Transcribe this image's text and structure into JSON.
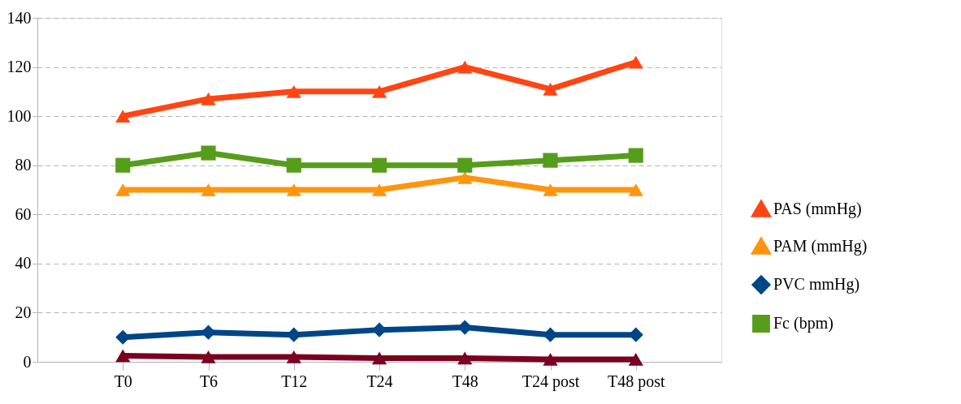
{
  "chart_data": {
    "type": "line",
    "categories": [
      "T0",
      "T6",
      "T12",
      "T24",
      "T48",
      "T24 post",
      "T48 post"
    ],
    "series": [
      {
        "name": "PAS (mmHg)",
        "color": "#ff4513",
        "marker": "triangle",
        "values": [
          100,
          107,
          110,
          110,
          120,
          111,
          122
        ]
      },
      {
        "name": "PAM (mmHg)",
        "color": "#ff950e",
        "marker": "triangle",
        "values": [
          70,
          70,
          70,
          70,
          75,
          70,
          70
        ]
      },
      {
        "name": "PVC mmHg)",
        "color": "#004586",
        "marker": "diamond",
        "values": [
          10,
          12,
          11,
          13,
          14,
          11,
          11
        ]
      },
      {
        "name": "Fc (bpm)",
        "color": "#579d1c",
        "marker": "square",
        "values": [
          80,
          85,
          80,
          80,
          80,
          82,
          84
        ]
      },
      {
        "color": "#7b0020",
        "marker": "triangle",
        "values": [
          2.5,
          2,
          2,
          1.5,
          1.5,
          1,
          1
        ]
      }
    ],
    "ylim": [
      0,
      140
    ],
    "yticks": [
      0,
      20,
      40,
      60,
      80,
      100,
      120,
      140
    ],
    "grid": "y",
    "legend": "right",
    "line_style": "solid"
  }
}
